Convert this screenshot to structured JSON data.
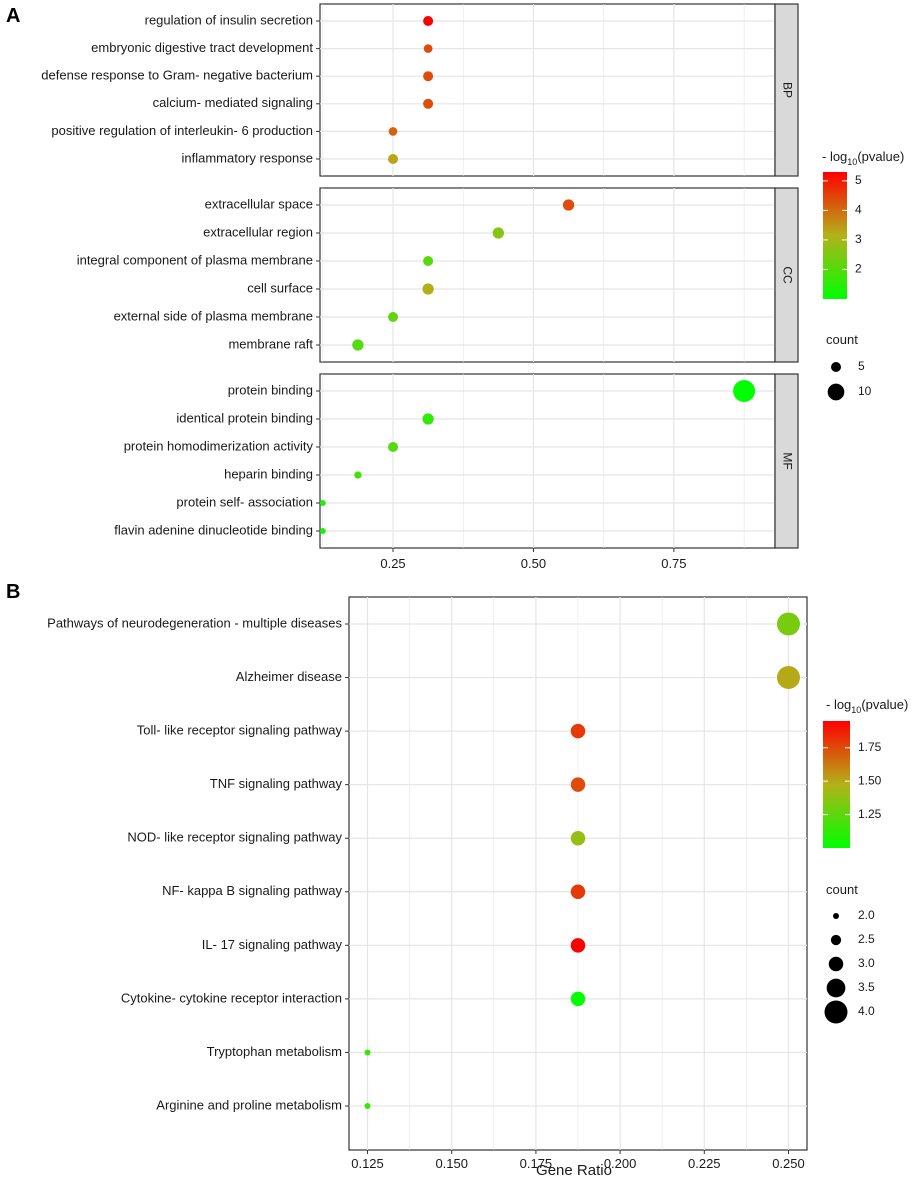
{
  "chart_data": [
    {
      "panel_label": "A",
      "type": "scatter",
      "xlabel": "",
      "xlim": [
        0.12,
        0.93
      ],
      "x_ticks": [
        0.25,
        0.5,
        0.75
      ],
      "x_tick_labels": [
        "0.25",
        "0.50",
        "0.75"
      ],
      "facets": [
        {
          "name": "BP",
          "terms": [
            {
              "label": "regulation of insulin secretion",
              "gene_ratio": 0.3125,
              "count": 5,
              "neg_log10_p": 5.3
            },
            {
              "label": "embryonic digestive tract development",
              "gene_ratio": 0.3125,
              "count": 4,
              "neg_log10_p": 4.4
            },
            {
              "label": "defense response to Gram- negative bacterium",
              "gene_ratio": 0.3125,
              "count": 5,
              "neg_log10_p": 4.4
            },
            {
              "label": "calcium- mediated signaling",
              "gene_ratio": 0.3125,
              "count": 5,
              "neg_log10_p": 4.4
            },
            {
              "label": "positive regulation of interleukin- 6 production",
              "gene_ratio": 0.25,
              "count": 4,
              "neg_log10_p": 4.1
            },
            {
              "label": "inflammatory response",
              "gene_ratio": 0.25,
              "count": 5,
              "neg_log10_p": 3.3
            }
          ]
        },
        {
          "name": "CC",
          "terms": [
            {
              "label": "extracellular space",
              "gene_ratio": 0.5625,
              "count": 6,
              "neg_log10_p": 4.4
            },
            {
              "label": "extracellular region",
              "gene_ratio": 0.4375,
              "count": 6,
              "neg_log10_p": 2.6
            },
            {
              "label": "integral component of plasma membrane",
              "gene_ratio": 0.3125,
              "count": 5,
              "neg_log10_p": 2.1
            },
            {
              "label": "cell surface",
              "gene_ratio": 0.3125,
              "count": 6,
              "neg_log10_p": 3.2
            },
            {
              "label": "external side of plasma membrane",
              "gene_ratio": 0.25,
              "count": 5,
              "neg_log10_p": 2.2
            },
            {
              "label": "membrane raft",
              "gene_ratio": 0.1875,
              "count": 6,
              "neg_log10_p": 2.0
            }
          ]
        },
        {
          "name": "MF",
          "terms": [
            {
              "label": "protein binding",
              "gene_ratio": 0.875,
              "count": 14,
              "neg_log10_p": 1.0
            },
            {
              "label": "identical protein binding",
              "gene_ratio": 0.3125,
              "count": 6,
              "neg_log10_p": 1.6
            },
            {
              "label": "protein homodimerization activity",
              "gene_ratio": 0.25,
              "count": 5,
              "neg_log10_p": 2.0
            },
            {
              "label": "heparin binding",
              "gene_ratio": 0.1875,
              "count": 3,
              "neg_log10_p": 1.8
            },
            {
              "label": "protein self- association",
              "gene_ratio": 0.125,
              "count": 2,
              "neg_log10_p": 1.3
            },
            {
              "label": "flavin adenine dinucleotide binding",
              "gene_ratio": 0.125,
              "count": 2,
              "neg_log10_p": 1.3
            }
          ]
        }
      ],
      "color_legend": {
        "title": "- log10(pvalue)",
        "min": 1.0,
        "max": 5.3,
        "ticks": [
          2,
          3,
          4,
          5
        ],
        "tick_labels": [
          "2",
          "3",
          "4",
          "5"
        ]
      },
      "size_legend": {
        "title": "count",
        "values": [
          5,
          10
        ],
        "labels": [
          "5",
          "10"
        ],
        "size_range": [
          2,
          14
        ]
      }
    },
    {
      "panel_label": "B",
      "type": "scatter",
      "xlabel": "Gene Ratio",
      "xlim": [
        0.1195,
        0.2555
      ],
      "x_ticks": [
        0.125,
        0.15,
        0.175,
        0.2,
        0.225,
        0.25
      ],
      "x_tick_labels": [
        "0.125",
        "0.150",
        "0.175",
        "0.200",
        "0.225",
        "0.250"
      ],
      "terms": [
        {
          "label": "Pathways of neurodegeneration -  multiple diseases",
          "gene_ratio": 0.25,
          "count": 4,
          "neg_log10_p": 1.32
        },
        {
          "label": "Alzheimer disease",
          "gene_ratio": 0.25,
          "count": 4,
          "neg_log10_p": 1.5
        },
        {
          "label": "Toll- like receptor signaling pathway",
          "gene_ratio": 0.1875,
          "count": 3,
          "neg_log10_p": 1.8
        },
        {
          "label": "TNF signaling pathway",
          "gene_ratio": 0.1875,
          "count": 3,
          "neg_log10_p": 1.75
        },
        {
          "label": "NOD- like receptor signaling pathway",
          "gene_ratio": 0.1875,
          "count": 3,
          "neg_log10_p": 1.4
        },
        {
          "label": "NF- kappa B signaling pathway",
          "gene_ratio": 0.1875,
          "count": 3,
          "neg_log10_p": 1.8
        },
        {
          "label": "IL- 17 signaling pathway",
          "gene_ratio": 0.1875,
          "count": 3,
          "neg_log10_p": 1.95
        },
        {
          "label": "Cytokine- cytokine receptor interaction",
          "gene_ratio": 0.1875,
          "count": 3,
          "neg_log10_p": 1.0
        },
        {
          "label": "Tryptophan metabolism",
          "gene_ratio": 0.125,
          "count": 2,
          "neg_log10_p": 1.15
        },
        {
          "label": "Arginine and proline metabolism",
          "gene_ratio": 0.125,
          "count": 2,
          "neg_log10_p": 1.15
        }
      ],
      "color_legend": {
        "title": "- log10(pvalue)",
        "min": 1.0,
        "max": 1.95,
        "ticks": [
          1.25,
          1.5,
          1.75
        ],
        "tick_labels": [
          "1.25",
          "1.50",
          "1.75"
        ]
      },
      "size_legend": {
        "title": "count",
        "values": [
          2.0,
          2.5,
          3.0,
          3.5,
          4.0
        ],
        "labels": [
          "2.0",
          "2.5",
          "3.0",
          "3.5",
          "4.0"
        ],
        "size_range": [
          2,
          4
        ]
      }
    }
  ],
  "colors": {
    "low": "#00ff00",
    "mid": "#b2b219",
    "high": "#ff0000",
    "panel_border": "#333333",
    "strip_fill": "#d9d9d9",
    "grid": "#e5e5e5"
  }
}
